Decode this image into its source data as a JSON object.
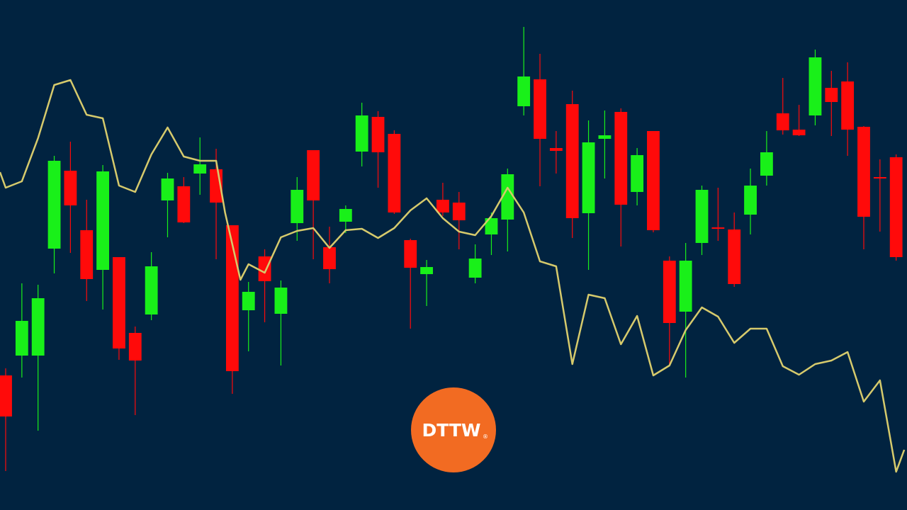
{
  "chart_data": {
    "type": "candlestick",
    "xlim": [
      -0.35,
      55.67
    ],
    "ylim": [
      0,
      720
    ],
    "up_color": "#19f019",
    "down_color": "#ff0a0a",
    "x": [
      0,
      1,
      2,
      3,
      4,
      5,
      6,
      7,
      8,
      9,
      10,
      11,
      12,
      13,
      14,
      15,
      16,
      17,
      18,
      19,
      20,
      21,
      22,
      23,
      24,
      25,
      26,
      27,
      28,
      29,
      30,
      31,
      32,
      33,
      34,
      35,
      36,
      37,
      38,
      39,
      40,
      41,
      42,
      43,
      44,
      45,
      46,
      47,
      48,
      49,
      50,
      51,
      52,
      53,
      54,
      55
    ],
    "open": [
      190,
      218,
      218,
      369,
      479,
      395,
      339,
      357,
      250,
      276,
      437,
      457,
      475,
      481,
      402,
      282,
      358,
      277,
      405,
      508,
      371,
      407,
      506,
      555,
      531,
      381,
      333,
      438,
      434,
      328,
      389,
      410,
      570,
      608,
      511,
      573,
      419,
      524,
      562,
      449,
      535,
      352,
      280,
      377,
      399,
      396,
      417,
      472,
      560,
      537,
      557,
      596,
      605,
      541,
      470,
      498
    ],
    "high": [
      200,
      320,
      318,
      500,
      520,
      438,
      487,
      357,
      259,
      364,
      476,
      470,
      526,
      510,
      402,
      322,
      368,
      324,
      470,
      508,
      400,
      430,
      575,
      563,
      536,
      383,
      353,
      462,
      449,
      375,
      420,
      482,
      682,
      644,
      535,
      592,
      550,
      564,
      567,
      511,
      535,
      358,
      377,
      458,
      455,
      420,
      482,
      535,
      610,
      572,
      650,
      620,
      632,
      542,
      495,
      502
    ],
    "low": [
      55,
      187,
      112,
      334,
      363,
      295,
      283,
      212,
      134,
      268,
      385,
      405,
      445,
      354,
      164,
      224,
      265,
      204,
      380,
      354,
      320,
      391,
      485,
      455,
      418,
      256,
      288,
      415,
      368,
      320,
      360,
      365,
      557,
      457,
      475,
      384,
      339,
      468,
      372,
      430,
      392,
      205,
      187,
      360,
      380,
      315,
      389,
      458,
      530,
      528,
      543,
      528,
      500,
      368,
      393,
      352
    ],
    "close": [
      132,
      267,
      299,
      493,
      430,
      326,
      478,
      228,
      211,
      344,
      468,
      406,
      488,
      434,
      196,
      308,
      323,
      314,
      452,
      437,
      340,
      425,
      557,
      505,
      420,
      342,
      343,
      420,
      409,
      355,
      412,
      474,
      612,
      524,
      507,
      412,
      519,
      529,
      431,
      501,
      395,
      264,
      352,
      452,
      397,
      319,
      458,
      505,
      536,
      529,
      639,
      576,
      537,
      414,
      468,
      357
    ],
    "line": {
      "color": "#d6ca6c",
      "x": [
        -0.35,
        0,
        1,
        2,
        3,
        4,
        5,
        6,
        7,
        8,
        9,
        10,
        11,
        12,
        13,
        13.55,
        14.5,
        15,
        16,
        17,
        18,
        19,
        20,
        21,
        22,
        23,
        24,
        25,
        26,
        27,
        28,
        29,
        30,
        31,
        32,
        33,
        34,
        35,
        36,
        37,
        38,
        39,
        40,
        41,
        42,
        43,
        44,
        45,
        46,
        47,
        48,
        49,
        50,
        51,
        52,
        53,
        54,
        55,
        55.5
      ],
      "values": [
        477,
        455,
        464,
        525,
        600,
        607,
        558,
        553,
        458,
        449,
        502,
        540,
        499,
        493,
        493,
        420,
        325,
        347,
        335,
        385,
        394,
        398,
        370,
        395,
        397,
        384,
        398,
        423,
        440,
        412,
        393,
        388,
        415,
        455,
        420,
        351,
        344,
        206,
        304,
        299,
        234,
        274,
        190,
        204,
        254,
        286,
        273,
        236,
        256,
        256,
        203,
        191,
        206,
        211,
        223,
        153,
        183,
        54,
        85
      ]
    }
  },
  "logo": {
    "text": "DTTW",
    "mark": "®"
  }
}
